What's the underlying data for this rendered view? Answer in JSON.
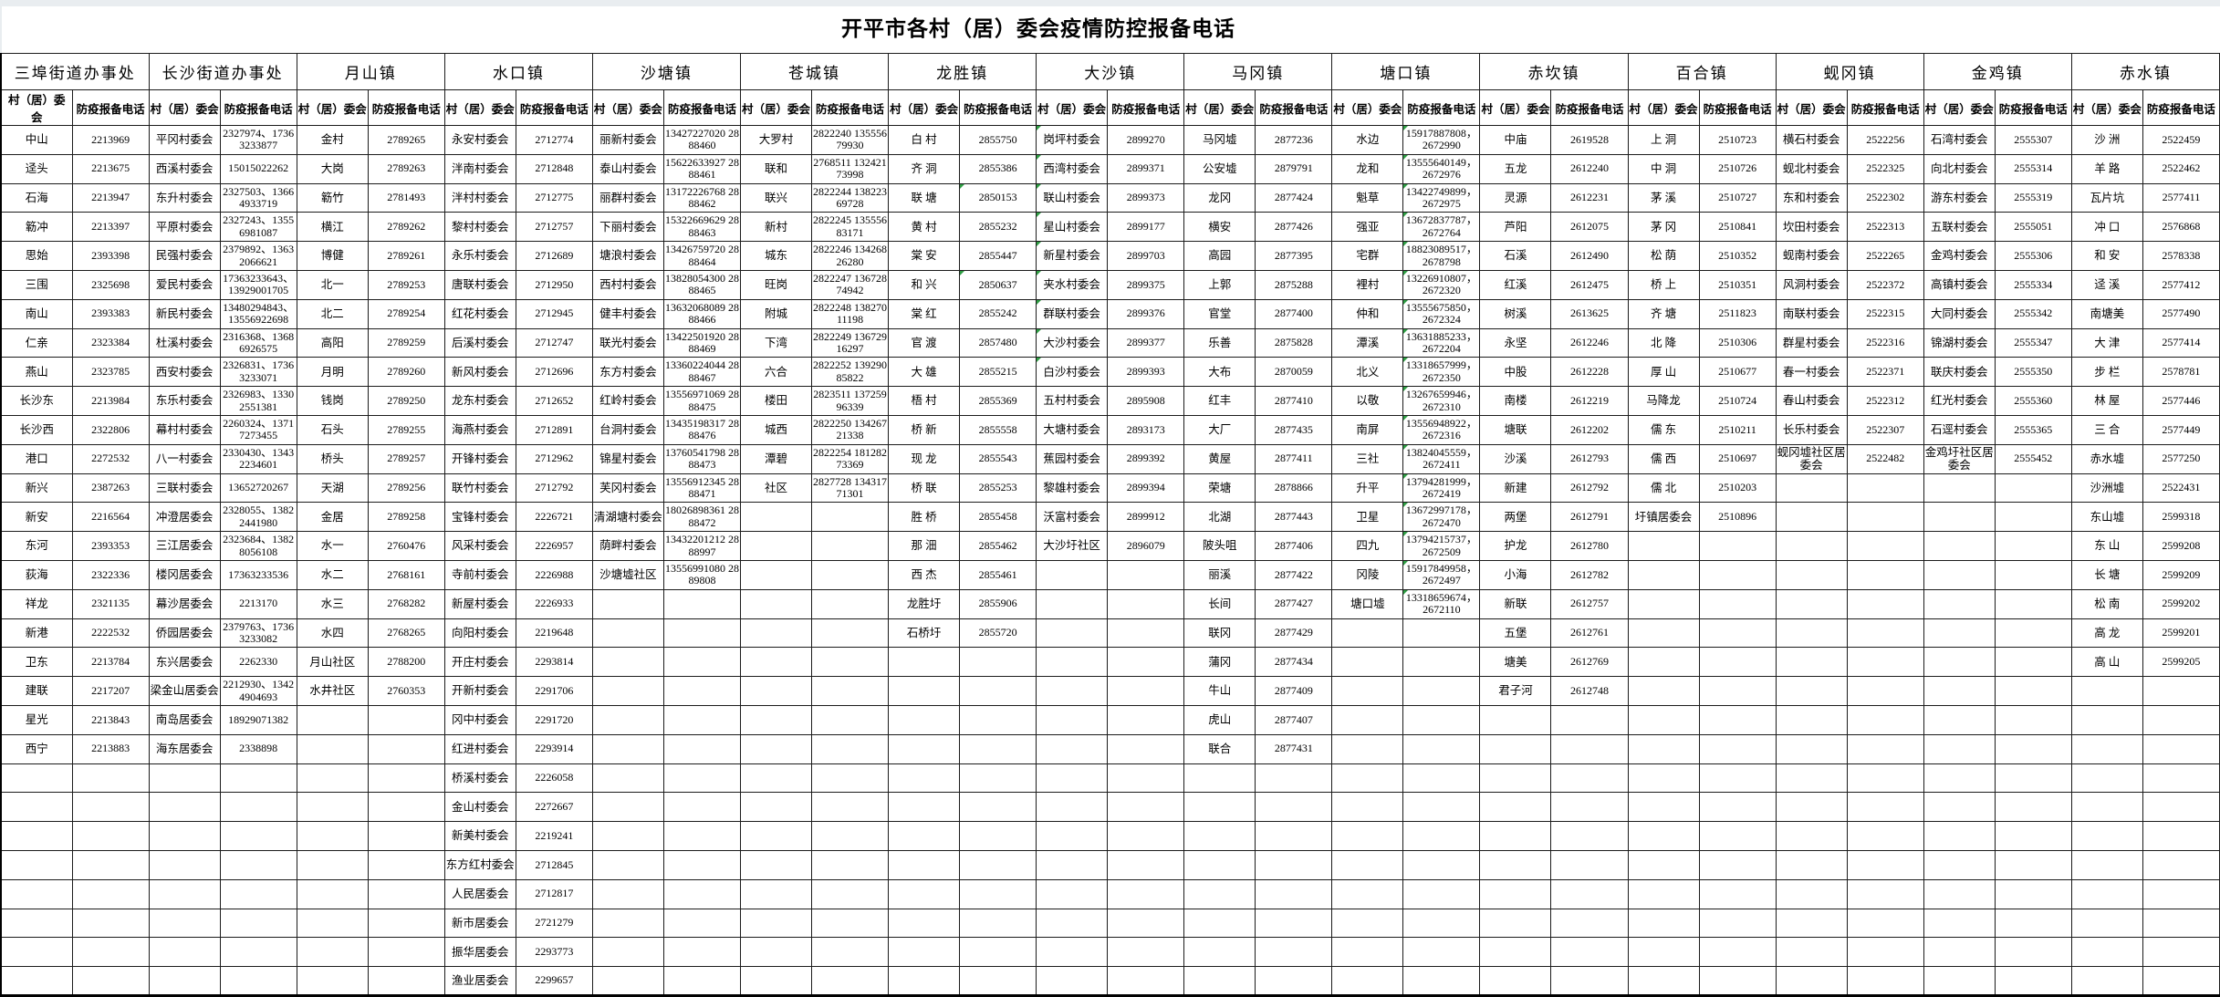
{
  "page_title": "开平市各村（居）委会疫情防控报备电话",
  "columns": {
    "name": "村（居）委会",
    "phone": "防疫报备电话"
  },
  "mark_color": "#2f9e44",
  "groups": [
    {
      "title": "三埠街道办事处",
      "entries": [
        [
          "中山",
          "2213969"
        ],
        [
          "迳头",
          "2213675"
        ],
        [
          "石海",
          "2213947"
        ],
        [
          "簕冲",
          "2213397"
        ],
        [
          "思始",
          "2393398"
        ],
        [
          "三围",
          "2325698"
        ],
        [
          "南山",
          "2393383"
        ],
        [
          "仁亲",
          "2323384"
        ],
        [
          "燕山",
          "2323785"
        ],
        [
          "长沙东",
          "2213984"
        ],
        [
          "长沙西",
          "2322806"
        ],
        [
          "港口",
          "2272532"
        ],
        [
          "新兴",
          "2387263"
        ],
        [
          "新安",
          "2216564"
        ],
        [
          "东河",
          "2393353"
        ],
        [
          "荻海",
          "2322336"
        ],
        [
          "祥龙",
          "2321135"
        ],
        [
          "新港",
          "2222532"
        ],
        [
          "卫东",
          "2213784"
        ],
        [
          "建联",
          "2217207"
        ],
        [
          "星光",
          "2213843"
        ],
        [
          "西宁",
          "2213883"
        ]
      ]
    },
    {
      "title": "长沙街道办事处",
      "entries": [
        [
          "平冈村委会",
          "2327974、17363233877"
        ],
        [
          "西溪村委会",
          "15015022262"
        ],
        [
          "东升村委会",
          "2327503、13664933719"
        ],
        [
          "平原村委会",
          "2327243、13556981087"
        ],
        [
          "民强村委会",
          "2379892、13632066621"
        ],
        [
          "爱民村委会",
          "17363233643、13929001705"
        ],
        [
          "新民村委会",
          "13480294843、13556922698"
        ],
        [
          "杜溪村委会",
          "2316368、13686926575"
        ],
        [
          "西安村委会",
          "2326831、17363233071"
        ],
        [
          "东乐村委会",
          "2326983、13302551381"
        ],
        [
          "幕村村委会",
          "2260324、13717273455"
        ],
        [
          "八一村委会",
          "2330430、13432234601"
        ],
        [
          "三联村委会",
          "13652720267"
        ],
        [
          "冲澄居委会",
          "2328055、13822441980"
        ],
        [
          "三江居委会",
          "2323684、13828056108"
        ],
        [
          "楼冈居委会",
          "17363233536"
        ],
        [
          "幕沙居委会",
          "2213170"
        ],
        [
          "侨园居委会",
          "2379763、17363233082"
        ],
        [
          "东兴居委会",
          "2262330"
        ],
        [
          "梁金山居委会",
          "2212930、13424904693"
        ],
        [
          "南岛居委会",
          "18929071382"
        ],
        [
          "海东居委会",
          "2338898"
        ]
      ]
    },
    {
      "title": "月山镇",
      "entries": [
        [
          "金村",
          "2789265"
        ],
        [
          "大岗",
          "2789263"
        ],
        [
          "簕竹",
          "2781493"
        ],
        [
          "横江",
          "2789262"
        ],
        [
          "博健",
          "2789261"
        ],
        [
          "北一",
          "2789253"
        ],
        [
          "北二",
          "2789254"
        ],
        [
          "高阳",
          "2789259"
        ],
        [
          "月明",
          "2789260"
        ],
        [
          "钱岗",
          "2789250"
        ],
        [
          "石头",
          "2789255"
        ],
        [
          "桥头",
          "2789257"
        ],
        [
          "天湖",
          "2789256"
        ],
        [
          "金居",
          "2789258"
        ],
        [
          "水一",
          "2760476"
        ],
        [
          "水二",
          "2768161"
        ],
        [
          "水三",
          "2768282"
        ],
        [
          "水四",
          "2768265"
        ],
        [
          "月山社区",
          "2788200"
        ],
        [
          "水井社区",
          "2760353"
        ]
      ]
    },
    {
      "title": "水口镇",
      "entries": [
        [
          "永安村委会",
          "2712774"
        ],
        [
          "泮南村委会",
          "2712848"
        ],
        [
          "泮村村委会",
          "2712775"
        ],
        [
          "黎村村委会",
          "2712757"
        ],
        [
          "永乐村委会",
          "2712689"
        ],
        [
          "唐联村委会",
          "2712950"
        ],
        [
          "红花村委会",
          "2712945"
        ],
        [
          "后溪村委会",
          "2712747"
        ],
        [
          "新风村委会",
          "2712696"
        ],
        [
          "龙东村委会",
          "2712652"
        ],
        [
          "海燕村委会",
          "2712891"
        ],
        [
          "开锋村委会",
          "2712962"
        ],
        [
          "联竹村委会",
          "2712792"
        ],
        [
          "宝锋村委会",
          "2226721"
        ],
        [
          "风采村委会",
          "2226957"
        ],
        [
          "寺前村委会",
          "2226988"
        ],
        [
          "新屋村委会",
          "2226933"
        ],
        [
          "向阳村委会",
          "2219648"
        ],
        [
          "开庄村委会",
          "2293814"
        ],
        [
          "开新村委会",
          "2291706"
        ],
        [
          "冈中村委会",
          "2291720"
        ],
        [
          "红进村委会",
          "2293914"
        ],
        [
          "桥溪村委会",
          "2226058"
        ],
        [
          "金山村委会",
          "2272667"
        ],
        [
          "新美村委会",
          "2219241"
        ],
        [
          "东方红村委会",
          "2712845"
        ],
        [
          "人民居委会",
          "2712817"
        ],
        [
          "新市居委会",
          "2721279"
        ],
        [
          "振华居委会",
          "2293773"
        ],
        [
          "渔业居委会",
          "2299657"
        ]
      ]
    },
    {
      "title": "沙塘镇",
      "entries": [
        [
          "丽新村委会",
          "13427227020 2888460"
        ],
        [
          "泰山村委会",
          "15622633927 2888461"
        ],
        [
          "丽群村委会",
          "13172226768 2888462"
        ],
        [
          "下丽村委会",
          "15322669629 2888463"
        ],
        [
          "塘浪村委会",
          "13426759720 2888464"
        ],
        [
          "西村村委会",
          "13828054300 2888465"
        ],
        [
          "健丰村委会",
          "13632068089 2888466"
        ],
        [
          "联光村委会",
          "13422501920 2888469"
        ],
        [
          "东方村委会",
          "13360224044 2888467"
        ],
        [
          "红岭村委会",
          "13556971069 2888475"
        ],
        [
          "台洞村委会",
          "13435198317 2888476"
        ],
        [
          "锦星村委会",
          "13760541798 2888473"
        ],
        [
          "芙冈村委会",
          "13556912345 2888471"
        ],
        [
          "清湖塘村委会",
          "18026898361 2888472"
        ],
        [
          "荫畔村委会",
          "13432201212 2888997"
        ],
        [
          "沙塘墟社区",
          "13556991080 2889808"
        ]
      ]
    },
    {
      "title": "苍城镇",
      "entries": [
        [
          "大罗村",
          "2822240 13555679930"
        ],
        [
          "联和",
          "2768511 13242173998"
        ],
        [
          "联兴",
          "2822244 13822369728"
        ],
        [
          "新村",
          "2822245 13555683171"
        ],
        [
          "城东",
          "2822246 13426826280"
        ],
        [
          "旺岗",
          "2822247 13672874942"
        ],
        [
          "附城",
          "2822248 13827011198"
        ],
        [
          "下湾",
          "2822249 13672916297"
        ],
        [
          "六合",
          "2822252 13929085822"
        ],
        [
          "楼田",
          "2823511 13725996339"
        ],
        [
          "城西",
          "2822250 13426721338"
        ],
        [
          "潭碧",
          "2822254 18128273369"
        ],
        [
          "社区",
          "2827728 13431771301"
        ]
      ]
    },
    {
      "title": "龙胜镇",
      "entries": [
        [
          "白 村",
          "2855750"
        ],
        [
          "齐 洞",
          "2855386"
        ],
        [
          "联 塘",
          "2850153",
          "pm"
        ],
        [
          "黄 村",
          "2855232"
        ],
        [
          "棠 安",
          "2855447"
        ],
        [
          "和 兴",
          "2850637",
          "pm"
        ],
        [
          "棠 红",
          "2855242"
        ],
        [
          "官 渡",
          "2857480"
        ],
        [
          "大 雄",
          "2855215"
        ],
        [
          "梧 村",
          "2855369"
        ],
        [
          "桥 新",
          "2855558"
        ],
        [
          "现 龙",
          "2855543"
        ],
        [
          "桥 联",
          "2855253"
        ],
        [
          "胜 桥",
          "2855458"
        ],
        [
          "那 沺",
          "2855462"
        ],
        [
          "西 杰",
          "2855461"
        ],
        [
          "龙胜圩",
          "2855906"
        ],
        [
          "石桥圩",
          "2855720"
        ]
      ]
    },
    {
      "title": "大沙镇",
      "entries": [
        [
          "岗坪村委会",
          "2899270",
          "nm"
        ],
        [
          "西湾村委会",
          "2899371",
          "nm"
        ],
        [
          "联山村委会",
          "2899373",
          "nm"
        ],
        [
          "星山村委会",
          "2899177",
          "nm"
        ],
        [
          "新星村委会",
          "2899703",
          "nm"
        ],
        [
          "夹水村委会",
          "2899375",
          "nm"
        ],
        [
          "群联村委会",
          "2899376",
          "nm"
        ],
        [
          "大沙村委会",
          "2899377",
          "nm"
        ],
        [
          "白沙村委会",
          "2899393",
          "nm"
        ],
        [
          "五村村委会",
          "2895908"
        ],
        [
          "大塘村委会",
          "2893173"
        ],
        [
          "蕉园村委会",
          "2899392"
        ],
        [
          "黎雄村委会",
          "2899394"
        ],
        [
          "沃富村委会",
          "2899912"
        ],
        [
          "大沙圩社区",
          "2896079"
        ]
      ]
    },
    {
      "title": "马冈镇",
      "entries": [
        [
          "马冈墟",
          "2877236"
        ],
        [
          "公安墟",
          "2879791"
        ],
        [
          "龙冈",
          "2877424"
        ],
        [
          "横安",
          "2877426"
        ],
        [
          "高园",
          "2877395"
        ],
        [
          "上郭",
          "2875288"
        ],
        [
          "官堂",
          "2877400"
        ],
        [
          "乐善",
          "2875828"
        ],
        [
          "大布",
          "2870059"
        ],
        [
          "红丰",
          "2877410"
        ],
        [
          "大厂",
          "2877435"
        ],
        [
          "黄屋",
          "2877411"
        ],
        [
          "荣塘",
          "2878866"
        ],
        [
          "北湖",
          "2877443"
        ],
        [
          "陂头咀",
          "2877406"
        ],
        [
          "丽溪",
          "2877422"
        ],
        [
          "长间",
          "2877427"
        ],
        [
          "联冈",
          "2877429"
        ],
        [
          "蒲冈",
          "2877434"
        ],
        [
          "牛山",
          "2877409"
        ],
        [
          "虎山",
          "2877407"
        ],
        [
          "联合",
          "2877431"
        ]
      ]
    },
    {
      "title": "塘口镇",
      "entries": [
        [
          "水边",
          "15917887808，2672990",
          "pm"
        ],
        [
          "龙和",
          "13555640149，2672976",
          "pm"
        ],
        [
          "魁草",
          "13422749899，2672975",
          "pm"
        ],
        [
          "强亚",
          "13672837787，2672764",
          "pm"
        ],
        [
          "宅群",
          "18823089517，2678798",
          "pm"
        ],
        [
          "裡村",
          "13226910807，2672320",
          "pm"
        ],
        [
          "仲和",
          "13555675850，2672324",
          "pm"
        ],
        [
          "潭溪",
          "13631885233，2672204",
          "pm"
        ],
        [
          "北义",
          "13318657999，2672350",
          "pm"
        ],
        [
          "以敬",
          "13267659946，2672310",
          "pm"
        ],
        [
          "南屏",
          "13556948922，2672316",
          "pm"
        ],
        [
          "三社",
          "13824045559，2672411",
          "pm"
        ],
        [
          "升平",
          "13794281999，2672419",
          "pm"
        ],
        [
          "卫星",
          "13672997178，2672470",
          "pm"
        ],
        [
          "四九",
          "13794215737，2672509",
          "pm"
        ],
        [
          "冈陵",
          "15917849958，2672497",
          "pm"
        ],
        [
          "塘口墟",
          "13318659674，2672110",
          "pm"
        ]
      ]
    },
    {
      "title": "赤坎镇",
      "entries": [
        [
          "中庙",
          "2619528"
        ],
        [
          "五龙",
          "2612240"
        ],
        [
          "灵源",
          "2612231"
        ],
        [
          "芦阳",
          "2612075"
        ],
        [
          "石溪",
          "2612490"
        ],
        [
          "红溪",
          "2612475"
        ],
        [
          "树溪",
          "2613625"
        ],
        [
          "永坚",
          "2612246"
        ],
        [
          "中股",
          "2612228"
        ],
        [
          "南楼",
          "2612219"
        ],
        [
          "塘联",
          "2612202"
        ],
        [
          "沙溪",
          "2612793"
        ],
        [
          "新建",
          "2612792"
        ],
        [
          "两堡",
          "2612791"
        ],
        [
          "护龙",
          "2612780"
        ],
        [
          "小海",
          "2612782"
        ],
        [
          "新联",
          "2612757"
        ],
        [
          "五堡",
          "2612761"
        ],
        [
          "塘美",
          "2612769"
        ],
        [
          "君子河",
          "2612748"
        ]
      ]
    },
    {
      "title": "百合镇",
      "entries": [
        [
          "上 洞",
          "2510723"
        ],
        [
          "中 洞",
          "2510726"
        ],
        [
          "茅 溪",
          "2510727"
        ],
        [
          "茅 冈",
          "2510841"
        ],
        [
          "松 荫",
          "2510352"
        ],
        [
          "桥 上",
          "2510351"
        ],
        [
          "齐 塘",
          "2511823"
        ],
        [
          "北 降",
          "2510306"
        ],
        [
          "厚 山",
          "2510677"
        ],
        [
          "马降龙",
          "2510724"
        ],
        [
          "儒 东",
          "2510211"
        ],
        [
          "儒 西",
          "2510697"
        ],
        [
          "儒 北",
          "2510203"
        ],
        [
          "圩镇居委会",
          "2510896"
        ]
      ]
    },
    {
      "title": "蚬冈镇",
      "entries": [
        [
          "横石村委会",
          "2522256"
        ],
        [
          "蚬北村委会",
          "2522325"
        ],
        [
          "东和村委会",
          "2522302"
        ],
        [
          "坎田村委会",
          "2522313"
        ],
        [
          "蚬南村委会",
          "2522265"
        ],
        [
          "风洞村委会",
          "2522372"
        ],
        [
          "南联村委会",
          "2522315"
        ],
        [
          "群星村委会",
          "2522316"
        ],
        [
          "春一村委会",
          "2522371"
        ],
        [
          "春山村委会",
          "2522312"
        ],
        [
          "长乐村委会",
          "2522307"
        ],
        [
          "蚬冈墟社区居委会",
          "2522482"
        ]
      ]
    },
    {
      "title": "金鸡镇",
      "entries": [
        [
          "石湾村委会",
          "2555307"
        ],
        [
          "向北村委会",
          "2555314"
        ],
        [
          "游东村委会",
          "2555319"
        ],
        [
          "五联村委会",
          "2555051"
        ],
        [
          "金鸡村委会",
          "2555306"
        ],
        [
          "高镇村委会",
          "2555334"
        ],
        [
          "大同村委会",
          "2555342"
        ],
        [
          "锦湖村委会",
          "2555347"
        ],
        [
          "联庆村委会",
          "2555350"
        ],
        [
          "红光村委会",
          "2555360"
        ],
        [
          "石逕村委会",
          "2555365"
        ],
        [
          "金鸡圩社区居委会",
          "2555452"
        ]
      ]
    },
    {
      "title": "赤水镇",
      "entries": [
        [
          "沙 洲",
          "2522459"
        ],
        [
          "羊 路",
          "2522462"
        ],
        [
          "瓦片坑",
          "2577411"
        ],
        [
          "冲 口",
          "2576868"
        ],
        [
          "和 安",
          "2578338"
        ],
        [
          "迳 溪",
          "2577412"
        ],
        [
          "南塘美",
          "2577490"
        ],
        [
          "大 津",
          "2577414"
        ],
        [
          "步 栏",
          "2578781"
        ],
        [
          "林 屋",
          "2577446"
        ],
        [
          "三 合",
          "2577449"
        ],
        [
          "赤水墟",
          "2577250"
        ],
        [
          "沙洲墟",
          "2522431"
        ],
        [
          "东山墟",
          "2599318"
        ],
        [
          "东 山",
          "2599208"
        ],
        [
          "长 塘",
          "2599209"
        ],
        [
          "松 南",
          "2599202"
        ],
        [
          "高 龙",
          "2599201"
        ],
        [
          "高 山",
          "2599205"
        ]
      ]
    }
  ]
}
